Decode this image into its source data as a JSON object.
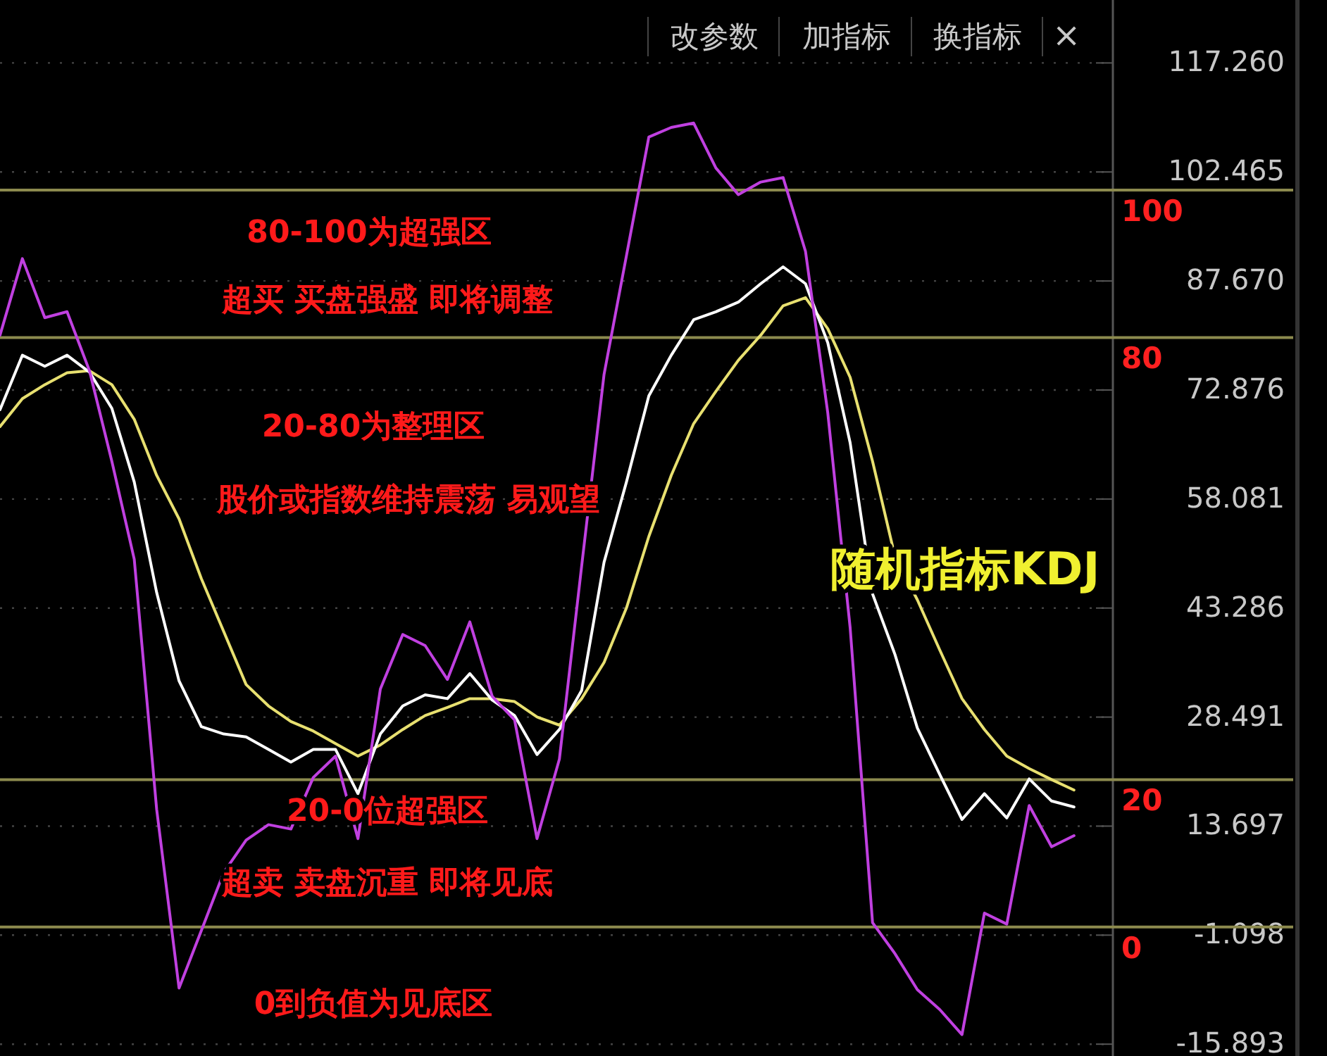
{
  "chart_data": {
    "type": "line",
    "title": "随机指标KDJ",
    "categories": [
      null,
      null,
      null,
      null,
      null,
      null,
      null,
      null,
      null,
      null,
      null,
      null,
      null,
      null,
      null,
      null,
      null,
      null,
      null,
      null,
      null,
      null,
      null,
      null,
      null,
      null,
      null,
      null,
      null,
      null,
      null,
      null,
      null,
      null,
      null,
      null,
      null,
      null,
      null,
      null,
      null,
      null,
      null,
      null,
      null,
      null,
      null,
      null,
      null
    ],
    "series": [
      {
        "color": "#e8e070",
        "values": [
          67.9,
          71.7,
          73.6,
          75.2,
          75.5,
          73.6,
          68.9,
          61.3,
          55.4,
          47.3,
          40.1,
          32.9,
          30.0,
          27.9,
          26.6,
          24.9,
          23.2,
          24.7,
          26.8,
          28.7,
          29.8,
          31.0,
          31.0,
          30.6,
          28.5,
          27.4,
          31.0,
          35.9,
          43.3,
          53.0,
          61.3,
          68.3,
          72.7,
          76.9,
          80.3,
          84.3,
          85.4,
          81.2,
          74.6,
          63.2,
          50.3,
          44.4,
          37.6,
          31.0,
          26.8,
          23.2,
          21.5,
          20.0,
          18.6
        ]
      },
      {
        "color": "#ffffff",
        "values": [
          70.2,
          77.6,
          76.1,
          77.6,
          75.3,
          70.4,
          60.4,
          45.4,
          33.4,
          27.2,
          26.2,
          25.8,
          24.1,
          22.4,
          24.1,
          24.1,
          18.1,
          26.2,
          30.0,
          31.5,
          31.0,
          34.4,
          30.8,
          28.7,
          23.4,
          26.8,
          32.1,
          49.5,
          60.4,
          72.1,
          77.6,
          82.4,
          83.5,
          84.8,
          87.3,
          89.6,
          87.3,
          79.3,
          65.7,
          45.2,
          37.0,
          27.0,
          20.7,
          14.6,
          18.1,
          14.8,
          20.1,
          17.1,
          16.3
        ]
      },
      {
        "color": "#c040e0",
        "values": [
          80.3,
          90.7,
          82.7,
          83.5,
          75.5,
          63.2,
          49.9,
          16.0,
          -8.3,
          -0.5,
          7.4,
          11.8,
          13.9,
          13.3,
          20.3,
          23.2,
          12.0,
          32.3,
          39.7,
          38.2,
          33.6,
          41.4,
          31.3,
          28.1,
          12.0,
          22.8,
          49.0,
          75.0,
          91.1,
          107.2,
          108.5,
          109.1,
          103.0,
          99.4,
          101.1,
          101.7,
          91.7,
          69.8,
          40.6,
          0.6,
          -3.6,
          -8.5,
          -11.2,
          -14.6,
          1.9,
          0.4,
          16.5,
          10.9,
          12.4
        ]
      }
    ],
    "ylim": [
      -17.5,
      125.8
    ],
    "yticks": [
      {
        "value": 117.26,
        "label": "117.260"
      },
      {
        "value": 102.465,
        "label": "102.465"
      },
      {
        "value": 87.67,
        "label": "87.670"
      },
      {
        "value": 72.876,
        "label": "72.876"
      },
      {
        "value": 58.081,
        "label": "58.081"
      },
      {
        "value": 43.286,
        "label": "43.286"
      },
      {
        "value": 28.491,
        "label": "28.491"
      },
      {
        "value": 13.697,
        "label": "13.697"
      },
      {
        "value": -1.098,
        "label": "-1.098"
      },
      {
        "value": -15.893,
        "label": "-15.893"
      }
    ],
    "grid": "y",
    "ref_lines": [
      {
        "axis": "y",
        "value": 100,
        "label": "100",
        "color": "#8c8a4e"
      },
      {
        "axis": "y",
        "value": 80,
        "label": "80",
        "color": "#8c8a4e"
      },
      {
        "axis": "y",
        "value": 20,
        "label": "20",
        "color": "#8c8a4e"
      },
      {
        "axis": "y",
        "value": 0,
        "label": "0",
        "color": "#8c8a4e"
      }
    ],
    "annotations": [
      "80-100为超强区",
      "超买 买盘强盛 即将调整",
      "20-80为整理区",
      "股价或指数维持震荡 易观望",
      "20-0位超强区",
      "超卖 卖盘沉重 即将见底",
      "0到负值为见底区",
      "改参数",
      "加指标",
      "换指标",
      "×"
    ]
  }
}
